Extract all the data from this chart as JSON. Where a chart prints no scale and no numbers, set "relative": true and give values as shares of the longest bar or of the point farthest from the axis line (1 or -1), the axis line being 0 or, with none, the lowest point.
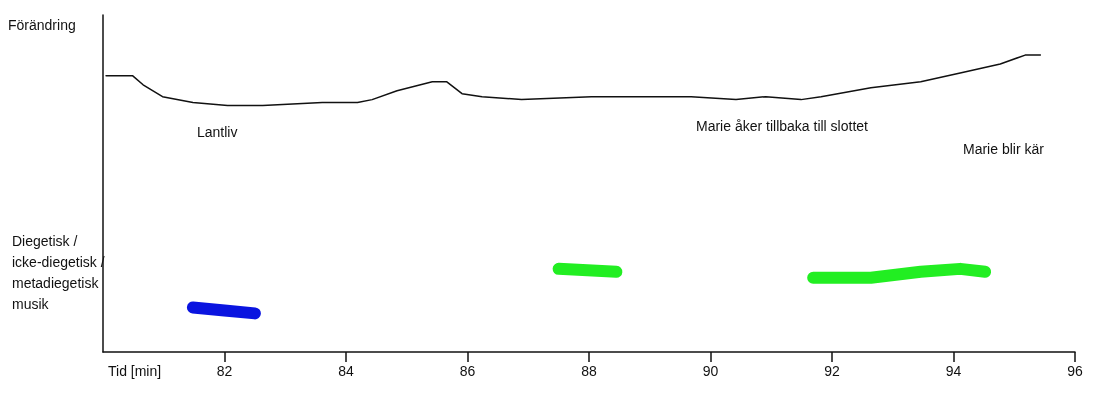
{
  "chart_data": {
    "type": "line",
    "relative": true,
    "ylabel": "Förändring",
    "xlabel": "Tid [min]",
    "xlim": [
      80,
      96
    ],
    "xticks": [
      82,
      84,
      86,
      88,
      90,
      92,
      94,
      96
    ],
    "grid": false,
    "marker": "none",
    "line_style": "solid",
    "annotations": [
      "Diegetisk /\nicke-diegetisk /\nmetadiegetisk\nmusik",
      "Lantliv",
      "Marie åker tillbaka till slottet",
      "Marie blir kär"
    ],
    "series": [
      {
        "color": "#111111",
        "x": [
          80.05,
          80.49,
          80.66,
          80.98,
          81.48,
          82.05,
          82.63,
          83.61,
          84.19,
          84.43,
          84.84,
          85.42,
          85.66,
          85.91,
          86.24,
          86.89,
          88.04,
          89.68,
          90.42,
          90.91,
          91.49,
          91.82,
          92.64,
          93.46,
          94.11,
          94.77,
          95.18,
          95.43
        ],
        "values": [
          0.93,
          0.93,
          0.9,
          0.86,
          0.84,
          0.83,
          0.83,
          0.84,
          0.84,
          0.85,
          0.88,
          0.91,
          0.91,
          0.87,
          0.86,
          0.85,
          0.86,
          0.86,
          0.85,
          0.86,
          0.85,
          0.86,
          0.89,
          0.91,
          0.94,
          0.97,
          1.0,
          1.0
        ]
      },
      {
        "color": "#0a14e0",
        "x": [
          81.48,
          82.0,
          82.5
        ],
        "values": [
          0.15,
          0.14,
          0.13
        ]
      },
      {
        "color": "#22ee22",
        "x": [
          87.5,
          88.45
        ],
        "values": [
          0.28,
          0.27
        ]
      },
      {
        "color": "#22ee22",
        "x": [
          91.69,
          92.64,
          93.46,
          94.11,
          94.52
        ],
        "values": [
          0.25,
          0.25,
          0.27,
          0.28,
          0.27
        ]
      }
    ]
  }
}
